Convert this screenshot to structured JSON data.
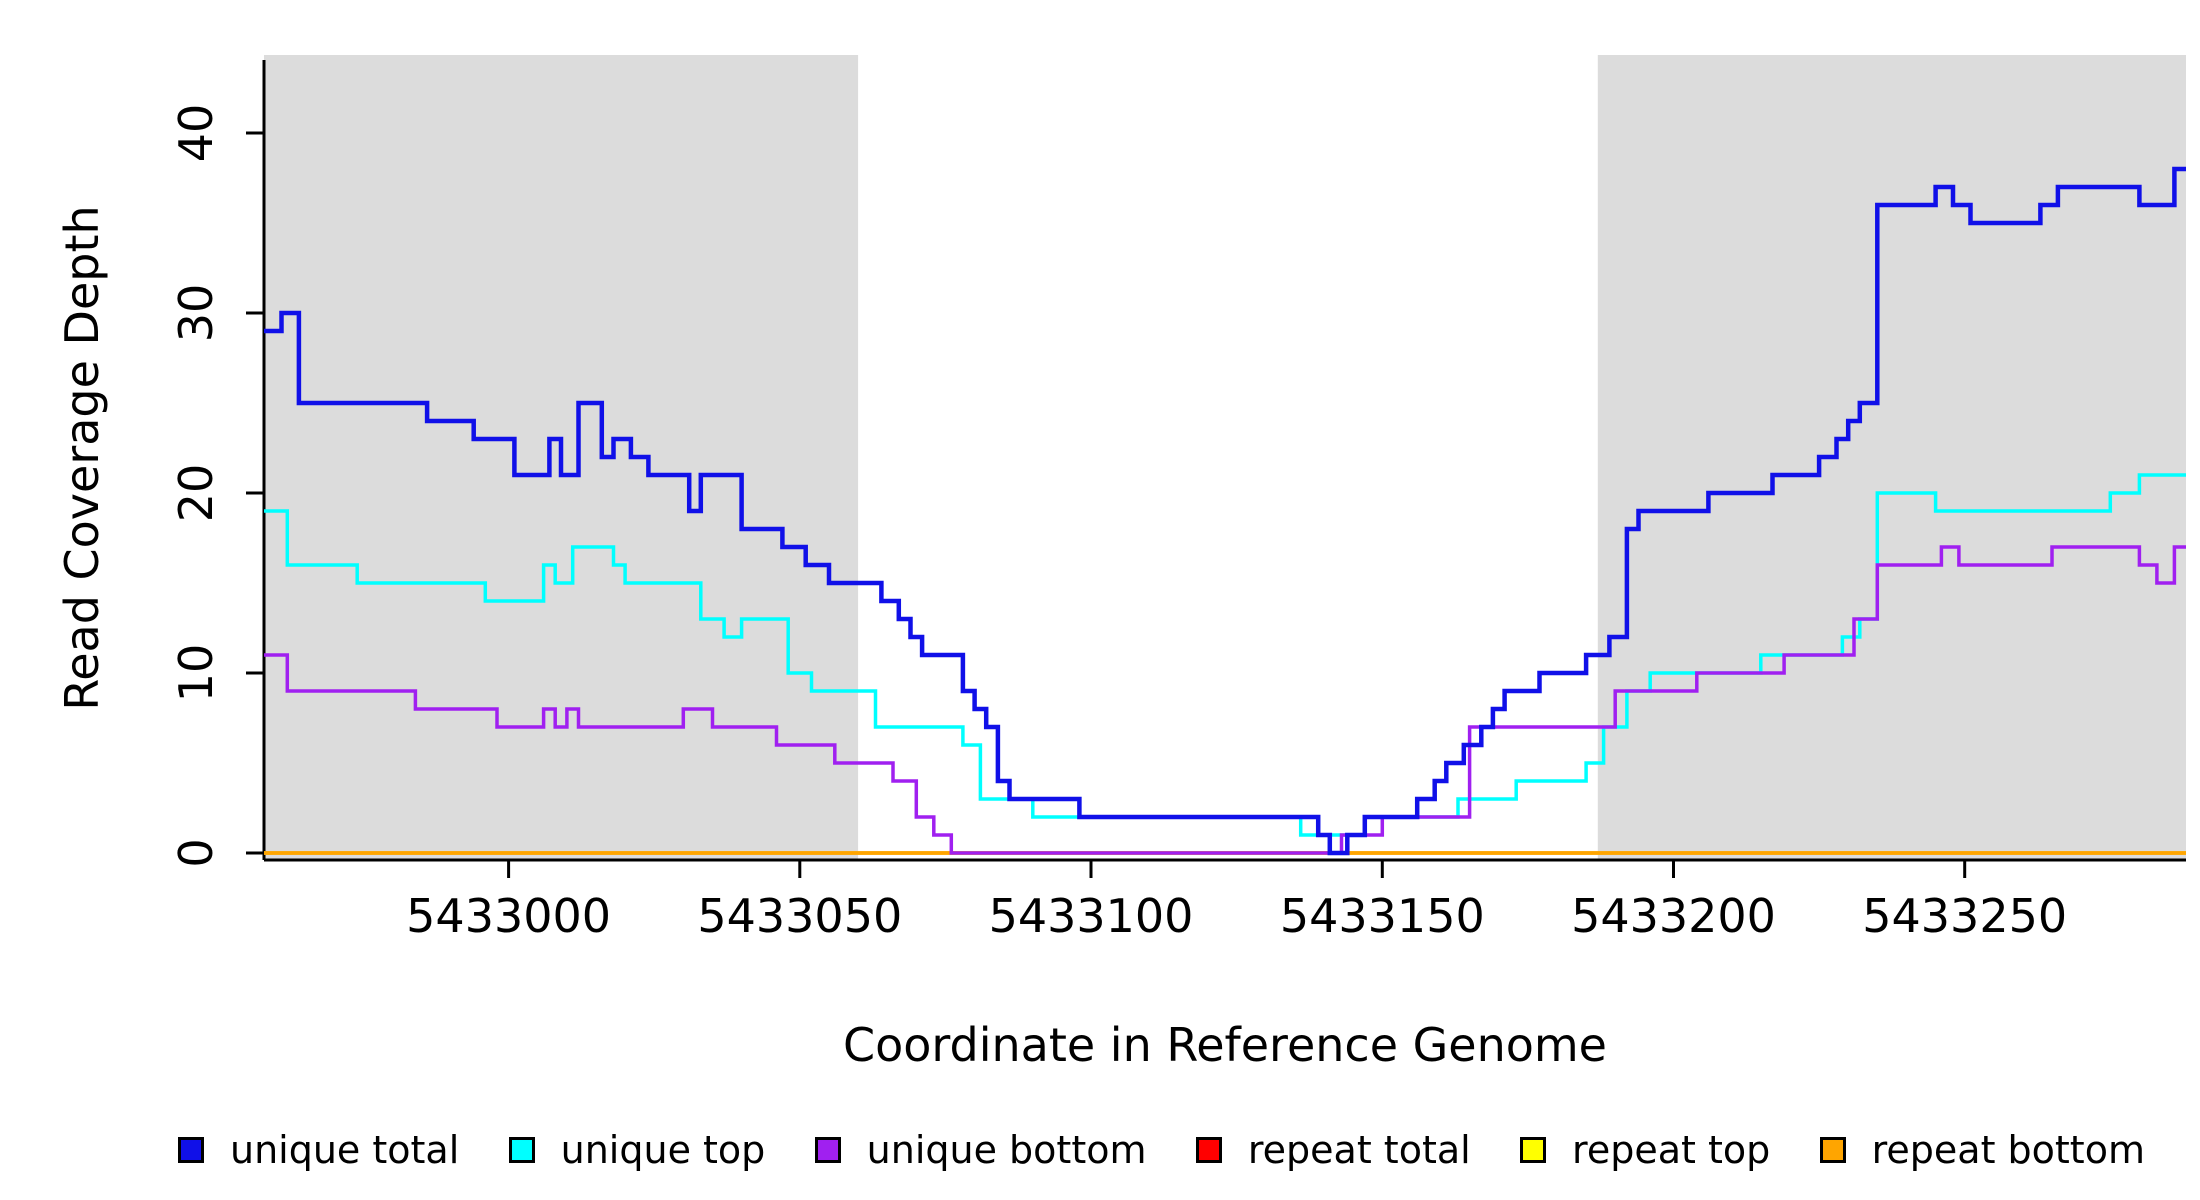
{
  "chart_data": {
    "type": "line",
    "title": "",
    "xlabel": "Coordinate in Reference Genome",
    "ylabel": "Read Coverage Depth",
    "xlim": [
      5432958,
      5433288
    ],
    "ylim": [
      0,
      43
    ],
    "x_ticks": [
      5433000,
      5433050,
      5433100,
      5433150,
      5433200,
      5433250
    ],
    "y_ticks": [
      0,
      10,
      20,
      30,
      40
    ],
    "grid": false,
    "legend_position": "bottom",
    "line_style": "step",
    "shaded_regions": [
      {
        "x0": 5432958,
        "x1": 5433060,
        "color": "#DCDCDC"
      },
      {
        "x0": 5433187,
        "x1": 5433288,
        "color": "#DCDCDC"
      }
    ],
    "series": [
      {
        "name": "unique total",
        "color": "#1010E8",
        "steps": [
          [
            5432958,
            29
          ],
          [
            5432961,
            30
          ],
          [
            5432964,
            25
          ],
          [
            5432986,
            24
          ],
          [
            5432994,
            23
          ],
          [
            5433001,
            21
          ],
          [
            5433007,
            23
          ],
          [
            5433009,
            21
          ],
          [
            5433012,
            25
          ],
          [
            5433016,
            22
          ],
          [
            5433018,
            23
          ],
          [
            5433021,
            22
          ],
          [
            5433024,
            21
          ],
          [
            5433031,
            19
          ],
          [
            5433033,
            21
          ],
          [
            5433040,
            18
          ],
          [
            5433047,
            17
          ],
          [
            5433051,
            16
          ],
          [
            5433055,
            15
          ],
          [
            5433064,
            14
          ],
          [
            5433067,
            13
          ],
          [
            5433069,
            12
          ],
          [
            5433071,
            11
          ],
          [
            5433078,
            9
          ],
          [
            5433080,
            8
          ],
          [
            5433082,
            7
          ],
          [
            5433084,
            4
          ],
          [
            5433086,
            3
          ],
          [
            5433096,
            3
          ],
          [
            5433098,
            2
          ],
          [
            5433136,
            2
          ],
          [
            5433139,
            1
          ],
          [
            5433141,
            0
          ],
          [
            5433144,
            1
          ],
          [
            5433147,
            2
          ],
          [
            5433156,
            3
          ],
          [
            5433159,
            4
          ],
          [
            5433161,
            5
          ],
          [
            5433164,
            6
          ],
          [
            5433167,
            7
          ],
          [
            5433169,
            8
          ],
          [
            5433171,
            9
          ],
          [
            5433177,
            10
          ],
          [
            5433185,
            11
          ],
          [
            5433189,
            12
          ],
          [
            5433192,
            18
          ],
          [
            5433194,
            19
          ],
          [
            5433206,
            20
          ],
          [
            5433217,
            21
          ],
          [
            5433225,
            22
          ],
          [
            5433228,
            23
          ],
          [
            5433230,
            24
          ],
          [
            5433232,
            25
          ],
          [
            5433235,
            36
          ],
          [
            5433245,
            37
          ],
          [
            5433248,
            36
          ],
          [
            5433251,
            35
          ],
          [
            5433263,
            36
          ],
          [
            5433266,
            37
          ],
          [
            5433280,
            36
          ],
          [
            5433286,
            38
          ]
        ]
      },
      {
        "name": "unique top",
        "color": "#00FFFF",
        "steps": [
          [
            5432958,
            19
          ],
          [
            5432962,
            16
          ],
          [
            5432974,
            15
          ],
          [
            5432996,
            14
          ],
          [
            5433006,
            16
          ],
          [
            5433008,
            15
          ],
          [
            5433011,
            17
          ],
          [
            5433018,
            16
          ],
          [
            5433020,
            15
          ],
          [
            5433033,
            13
          ],
          [
            5433037,
            12
          ],
          [
            5433040,
            13
          ],
          [
            5433048,
            10
          ],
          [
            5433052,
            9
          ],
          [
            5433063,
            7
          ],
          [
            5433078,
            6
          ],
          [
            5433081,
            3
          ],
          [
            5433090,
            2
          ],
          [
            5433136,
            1
          ],
          [
            5433147,
            2
          ],
          [
            5433163,
            3
          ],
          [
            5433173,
            4
          ],
          [
            5433185,
            5
          ],
          [
            5433188,
            7
          ],
          [
            5433192,
            9
          ],
          [
            5433196,
            10
          ],
          [
            5433215,
            11
          ],
          [
            5433229,
            12
          ],
          [
            5433232,
            13
          ],
          [
            5433235,
            20
          ],
          [
            5433245,
            19
          ],
          [
            5433275,
            20
          ],
          [
            5433280,
            21
          ]
        ]
      },
      {
        "name": "unique bottom",
        "color": "#A020F0",
        "steps": [
          [
            5432958,
            11
          ],
          [
            5432962,
            9
          ],
          [
            5432984,
            8
          ],
          [
            5432998,
            7
          ],
          [
            5433006,
            8
          ],
          [
            5433008,
            7
          ],
          [
            5433010,
            8
          ],
          [
            5433012,
            7
          ],
          [
            5433030,
            8
          ],
          [
            5433035,
            7
          ],
          [
            5433046,
            6
          ],
          [
            5433056,
            5
          ],
          [
            5433066,
            4
          ],
          [
            5433070,
            2
          ],
          [
            5433073,
            1
          ],
          [
            5433076,
            0
          ],
          [
            5433143,
            1
          ],
          [
            5433150,
            2
          ],
          [
            5433165,
            7
          ],
          [
            5433190,
            9
          ],
          [
            5433204,
            10
          ],
          [
            5433219,
            11
          ],
          [
            5433231,
            13
          ],
          [
            5433235,
            16
          ],
          [
            5433246,
            17
          ],
          [
            5433249,
            16
          ],
          [
            5433265,
            17
          ],
          [
            5433280,
            16
          ],
          [
            5433283,
            15
          ],
          [
            5433286,
            17
          ]
        ]
      },
      {
        "name": "repeat total",
        "color": "#FF0000",
        "steps": [
          [
            5432958,
            0
          ]
        ]
      },
      {
        "name": "repeat top",
        "color": "#FFFF00",
        "steps": [
          [
            5432958,
            0
          ]
        ]
      },
      {
        "name": "repeat bottom",
        "color": "#FFA500",
        "steps": [
          [
            5432958,
            0
          ]
        ]
      }
    ]
  }
}
